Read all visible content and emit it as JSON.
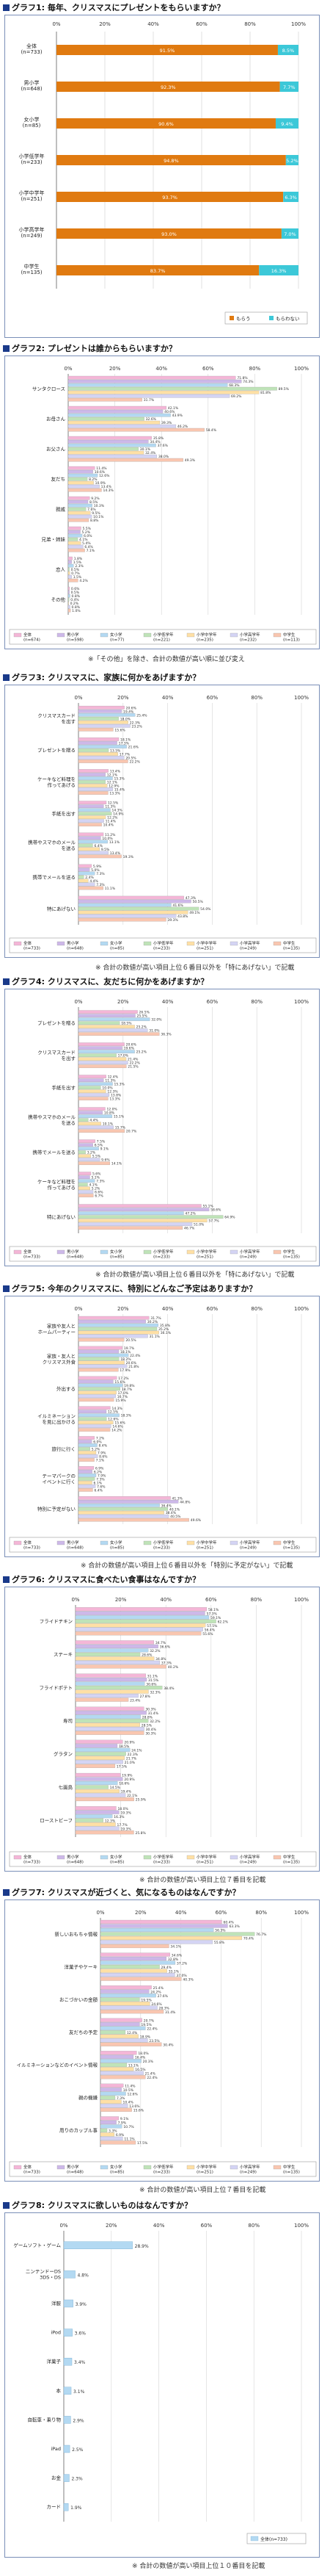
{
  "chart_data": [
    {
      "type": "bar",
      "subtype": "stacked-100",
      "title": "グラフ1:  毎年、クリスマスにプレゼントをもらいますか？",
      "xlim": [
        0,
        100
      ],
      "ticks": [
        "0%",
        "20%",
        "40%",
        "60%",
        "80%",
        "100%"
      ],
      "categories": [
        "全体\n(n=733)",
        "男小学\n(n=648)",
        "女小学\n(n=85)",
        "小学低学年\n(n=233)",
        "小学中学年\n(n=251)",
        "小学高学年\n(n=249)",
        "中学生\n(n=135)"
      ],
      "series": [
        {
          "name": "もらう",
          "color": "#e07a10",
          "values": [
            91.5,
            92.3,
            90.6,
            94.8,
            93.7,
            93.0,
            83.7
          ]
        },
        {
          "name": "もらわない",
          "color": "#3cc8d8",
          "values": [
            8.5,
            7.7,
            9.4,
            5.2,
            6.3,
            7.0,
            16.3
          ]
        }
      ]
    },
    {
      "type": "bar",
      "subtype": "grouped-horizontal",
      "title": "グラフ2:  プレゼントは誰からもらいますか？",
      "xlim": [
        0,
        100
      ],
      "ticks": [
        "0%",
        "20%",
        "40%",
        "60%",
        "80%",
        "100%"
      ],
      "categories": [
        "サンタクロース",
        "お母さん",
        "お父さん",
        "友だち",
        "親戚",
        "兄弟・姉妹",
        "恋人",
        "その他"
      ],
      "series": [
        {
          "name": "全体\n(n=674)",
          "values": [
            71.8,
            42.1,
            35.8,
            11.4,
            9.2,
            5.5,
            1.8,
            0.6
          ]
        },
        {
          "name": "男小学\n(n=598)",
          "values": [
            74.3,
            40.6,
            34.4,
            10.6,
            8.5,
            5.2,
            1.5,
            0.5
          ]
        },
        {
          "name": "女小学\n(n=77)",
          "values": [
            68.3,
            43.9,
            37.6,
            12.6,
            10.3,
            6.0,
            2.3,
            0.8
          ]
        },
        {
          "name": "小学低学年\n(n=221)",
          "values": [
            89.5,
            32.6,
            30.1,
            8.2,
            7.6,
            4.1,
            0.5,
            0.4
          ]
        },
        {
          "name": "小学中学年\n(n=235)",
          "values": [
            81.8,
            39.3,
            32.4,
            10.9,
            9.5,
            5.4,
            0.7,
            0.2
          ]
        },
        {
          "name": "小学高学年\n(n=232)",
          "values": [
            69.2,
            46.2,
            38.0,
            13.4,
            10.1,
            6.4,
            1.5,
            0.8
          ]
        },
        {
          "name": "中学生\n(n=113)",
          "values": [
            31.7,
            58.4,
            49.3,
            14.3,
            8.8,
            7.1,
            4.2,
            1.0
          ]
        }
      ],
      "note": "※「その他」を除き、合計の数値が高い順に並び変え"
    },
    {
      "type": "bar",
      "subtype": "grouped-horizontal",
      "title": "グラフ3:  クリスマスに、家族に何かをあげますか？",
      "xlim": [
        0,
        100
      ],
      "ticks": [
        "0%",
        "20%",
        "40%",
        "60%",
        "80%",
        "100%"
      ],
      "categories": [
        "クリスマスカード\nを出す",
        "プレゼントを贈る",
        "ケーキなど料理を\n作ってあげる",
        "手紙を出す",
        "携帯やスマホのメール\nを送る",
        "携帯でメールを送る",
        "特にあげない"
      ],
      "series": [
        {
          "name": "全体\n(n=733)",
          "values": [
            20.6,
            18.1,
            13.4,
            12.5,
            11.2,
            5.9,
            47.3
          ]
        },
        {
          "name": "男小学\n(n=648)",
          "values": [
            19.4,
            17.3,
            12.1,
            11.3,
            10.0,
            5.0,
            50.5
          ]
        },
        {
          "name": "女小学\n(n=85)",
          "values": [
            25.4,
            21.6,
            15.3,
            14.3,
            13.1,
            7.3,
            41.6
          ]
        },
        {
          "name": "小学低学年\n(n=233)",
          "values": [
            18.0,
            13.5,
            12.1,
            14.9,
            6.4,
            2.4,
            54.0
          ]
        },
        {
          "name": "小学中学年\n(n=251)",
          "values": [
            22.3,
            17.7,
            12.9,
            12.2,
            9.5,
            4.4,
            49.1
          ]
        },
        {
          "name": "小学高学年\n(n=249)",
          "values": [
            23.2,
            20.5,
            15.4,
            11.4,
            13.4,
            7.3,
            43.8
          ]
        },
        {
          "name": "中学生\n(n=135)",
          "values": [
            15.6,
            22.2,
            13.3,
            10.4,
            19.3,
            11.1,
            39.3
          ]
        }
      ],
      "note": "※ 合計の数値が高い項目上位６番目以外を「特にあげない」で記載"
    },
    {
      "type": "bar",
      "subtype": "grouped-horizontal",
      "title": "グラフ4:  クリスマスに、友だちに何かをあげますか？",
      "xlim": [
        0,
        100
      ],
      "ticks": [
        "0%",
        "20%",
        "40%",
        "60%",
        "80%",
        "100%"
      ],
      "categories": [
        "プレゼントを贈る",
        "クリスマスカード\nを出す",
        "手紙を出す",
        "携帯やスマホのメール\nを送る",
        "携帯でメールを送る",
        "ケーキなど料理を\n作ってあげる",
        "特にあげない"
      ],
      "series": [
        {
          "name": "全体\n(n=733)",
          "values": [
            26.5,
            20.6,
            12.4,
            12.0,
            7.5,
            5.6,
            55.1
          ]
        },
        {
          "name": "男小学\n(n=648)",
          "values": [
            25.5,
            19.6,
            11.3,
            10.8,
            6.5,
            5.1,
            58.6
          ]
        },
        {
          "name": "女小学\n(n=85)",
          "values": [
            32.0,
            25.2,
            15.3,
            15.1,
            9.1,
            7.3,
            47.2
          ]
        },
        {
          "name": "小学低学年\n(n=233)",
          "values": [
            18.5,
            17.0,
            10.0,
            4.4,
            3.2,
            4.1,
            64.9
          ]
        },
        {
          "name": "小学中学年\n(n=251)",
          "values": [
            25.2,
            21.4,
            12.3,
            10.1,
            5.5,
            5.2,
            57.7
          ]
        },
        {
          "name": "小学高学年\n(n=249)",
          "values": [
            31.0,
            22.2,
            13.8,
            15.7,
            9.6,
            6.6,
            51.0
          ]
        },
        {
          "name": "中学生\n(n=135)",
          "values": [
            36.3,
            21.5,
            13.3,
            20.7,
            14.1,
            6.7,
            46.7
          ]
        }
      ],
      "note": "※ 合計の数値が高い項目上位６番目以外を「特にあげない」で記載"
    },
    {
      "type": "bar",
      "subtype": "grouped-horizontal",
      "title": "グラフ5:  今年のクリスマスに、特別にどんなご予定はありますか？",
      "xlim": [
        0,
        100
      ],
      "ticks": [
        "0%",
        "20%",
        "40%",
        "60%",
        "80%",
        "100%"
      ],
      "categories": [
        "家族や友人と\nホームパーティー",
        "家族・友人と\nクリスマス外食",
        "外出する",
        "イルミネーション\nを見に出かける",
        "旅行に行く",
        "テーマパークの\nイベントに行く",
        "特別に予定がない"
      ],
      "series": [
        {
          "name": "全体\n(n=733)",
          "values": [
            31.7,
            19.7,
            17.2,
            14.3,
            7.2,
            6.9,
            41.3
          ]
        },
        {
          "name": "男小学\n(n=648)",
          "values": [
            30.2,
            18.1,
            15.6,
            12.5,
            6.0,
            6.2,
            44.8
          ]
        },
        {
          "name": "女小学\n(n=85)",
          "values": [
            35.8,
            22.4,
            19.8,
            18.3,
            8.4,
            7.9,
            36.4
          ]
        },
        {
          "name": "小学低学年\n(n=233)",
          "values": [
            35.2,
            18.2,
            18.7,
            12.6,
            5.2,
            7.3,
            40.1
          ]
        },
        {
          "name": "小学中学年\n(n=251)",
          "values": [
            36.1,
            20.6,
            17.0,
            15.6,
            7.9,
            6.1,
            38.4
          ]
        },
        {
          "name": "小学高学年\n(n=249)",
          "values": [
            31.1,
            21.8,
            16.7,
            14.6,
            8.6,
            7.6,
            40.5
          ]
        },
        {
          "name": "中学生\n(n=135)",
          "values": [
            20.5,
            17.9,
            15.9,
            14.2,
            7.1,
            6.4,
            49.6
          ]
        }
      ],
      "note": "※ 合計の数値が高い項目上位６番目以外を「特別に予定がない」で記載"
    },
    {
      "type": "bar",
      "subtype": "grouped-horizontal",
      "title": "グラフ6:  クリスマスに食べたい食事はなんですか？",
      "xlim": [
        0,
        100
      ],
      "ticks": [
        "0%",
        "20%",
        "40%",
        "60%",
        "80%",
        "100%"
      ],
      "categories": [
        "フライドチキン",
        "ステーキ",
        "フライドポテト",
        "寿司",
        "グラタン",
        "七面鳥",
        "ローストビーフ"
      ],
      "series": [
        {
          "name": "全体\n(n=733)",
          "values": [
            58.1,
            34.7,
            31.1,
            30.3,
            20.9,
            19.9,
            18.0
          ]
        },
        {
          "name": "男小学\n(n=648)",
          "values": [
            57.3,
            36.6,
            31.5,
            31.4,
            18.5,
            20.9,
            19.3
          ]
        },
        {
          "name": "女小学\n(n=85)",
          "values": [
            59.1,
            32.2,
            30.6,
            28.8,
            24.1,
            18.6,
            16.3
          ]
        },
        {
          "name": "小学低学年\n(n=233)",
          "values": [
            62.2,
            28.6,
            38.4,
            32.2,
            22.3,
            14.5,
            12.3
          ]
        },
        {
          "name": "小学中学年\n(n=251)",
          "values": [
            57.5,
            34.8,
            32.3,
            28.5,
            21.7,
            19.4,
            17.7
          ]
        },
        {
          "name": "小学高学年\n(n=249)",
          "values": [
            56.4,
            37.3,
            27.8,
            30.4,
            21.0,
            22.1,
            19.3
          ]
        },
        {
          "name": "中学生\n(n=135)",
          "values": [
            55.6,
            40.2,
            23.4,
            30.3,
            17.5,
            25.9,
            25.8
          ]
        }
      ],
      "note": "※ 合計の数値が高い項目上位７番目を記載"
    },
    {
      "type": "bar",
      "subtype": "grouped-horizontal",
      "title": "グラフ7:  クリスマスが近づくと、気になるものはなんですか？",
      "xlim": [
        0,
        100
      ],
      "ticks": [
        "0%",
        "20%",
        "40%",
        "60%",
        "80%",
        "100%"
      ],
      "categories": [
        "新しいおもちゃ情報",
        "洋菓子やケーキ",
        "おこづかいの金額",
        "友だちの予定",
        "イルミネーションなどのイベント情報",
        "親の機嫌",
        "周りのカップル事"
      ],
      "series": [
        {
          "name": "全体\n(n=733)",
          "values": [
            60.4,
            34.6,
            25.4,
            20.7,
            18.0,
            11.4,
            9.1
          ]
        },
        {
          "name": "男小学\n(n=648)",
          "values": [
            63.3,
            32.8,
            24.2,
            19.5,
            16.4,
            10.5,
            7.9
          ]
        },
        {
          "name": "女小学\n(n=85)",
          "values": [
            56.3,
            37.2,
            27.6,
            22.4,
            20.3,
            12.6,
            10.7
          ]
        },
        {
          "name": "小学低学年\n(n=233)",
          "values": [
            76.7,
            29.4,
            19.5,
            12.4,
            13.1,
            7.3,
            3.3
          ]
        },
        {
          "name": "小学中学年\n(n=251)",
          "values": [
            70.4,
            33.1,
            24.6,
            18.9,
            16.5,
            10.4,
            6.9
          ]
        },
        {
          "name": "小学高学年\n(n=249)",
          "values": [
            55.8,
            37.0,
            28.3,
            23.5,
            21.4,
            13.6,
            11.1
          ]
        },
        {
          "name": "中学生\n(n=135)",
          "values": [
            34.1,
            40.3,
            31.4,
            30.4,
            22.4,
            15.6,
            17.5
          ]
        }
      ],
      "note": "※ 合計の数値が高い項目上位７番目を記載"
    },
    {
      "type": "bar",
      "subtype": "horizontal",
      "title": "グラフ8:  クリスマスに欲しいものはなんですか？",
      "xlim": [
        0,
        100
      ],
      "ticks": [
        "0%",
        "20%",
        "40%",
        "60%",
        "80%",
        "100%"
      ],
      "categories": [
        "ゲームソフト・ゲーム",
        "ニンテンドーDS\n3DS・DS",
        "洋服",
        "iPod",
        "洋菓子",
        "本",
        "自転車・乗り物",
        "iPad",
        "お金",
        "カード"
      ],
      "series": [
        {
          "name": "全体(n=733)",
          "values": [
            28.9,
            4.8,
            3.9,
            3.6,
            3.4,
            3.1,
            2.9,
            2.5,
            2.3,
            1.9
          ]
        }
      ],
      "note": "※ 合計の数値が高い項目上位１０番目を記載"
    }
  ],
  "series_colors": [
    "#f4b6d7",
    "#cdb8e9",
    "#b3d9f2",
    "#bfe3b8",
    "#ffe0a5",
    "#d4d4f4",
    "#f9c6b0"
  ],
  "legend_swatch_note": ""
}
